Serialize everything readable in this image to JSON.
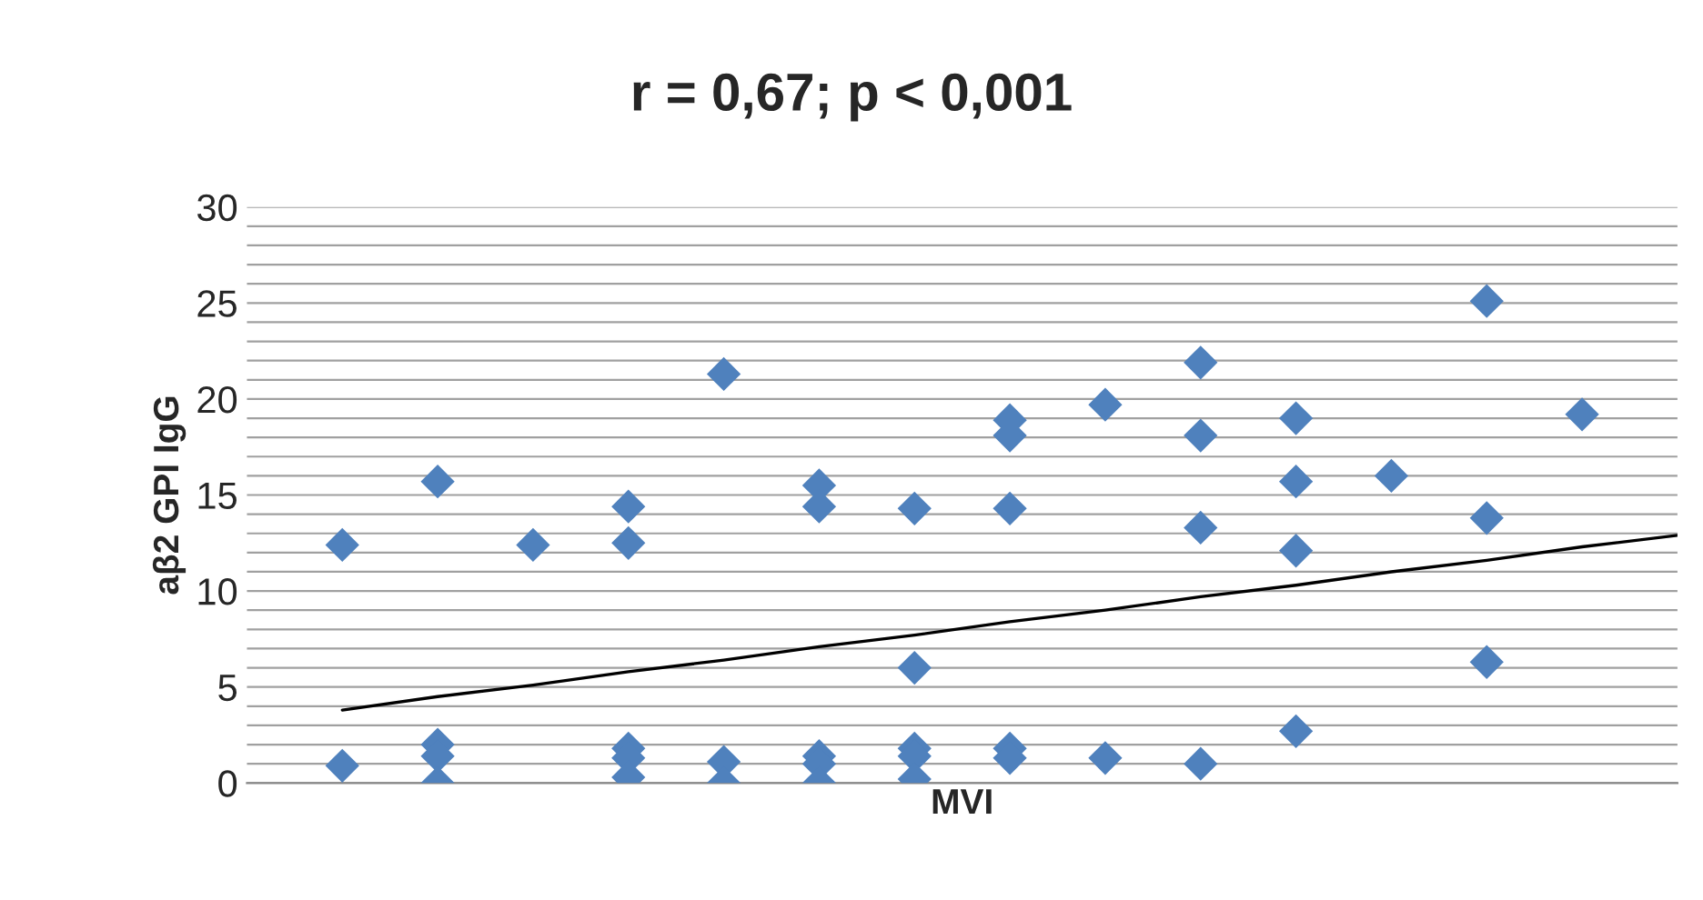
{
  "chart_data": {
    "type": "scatter",
    "title": "r = 0,67; p < 0,001",
    "xlabel": "MVI",
    "ylabel": "aβ2 GPI IgG",
    "categories": [
      null,
      null,
      null,
      null,
      null,
      null,
      null,
      null,
      null,
      null,
      null,
      null,
      null,
      null,
      null
    ],
    "ylim": [
      0,
      30
    ],
    "yticks": [
      0,
      {
        "value": 1,
        "label": null
      },
      {
        "value": 2,
        "label": null
      },
      {
        "value": 3,
        "label": null
      },
      {
        "value": 4,
        "label": null
      },
      5,
      {
        "value": 6,
        "label": null
      },
      {
        "value": 7,
        "label": null
      },
      {
        "value": 8,
        "label": null
      },
      {
        "value": 9,
        "label": null
      },
      10,
      {
        "value": 11,
        "label": null
      },
      {
        "value": 12,
        "label": null
      },
      {
        "value": 13,
        "label": null
      },
      {
        "value": 14,
        "label": null
      },
      15,
      {
        "value": 16,
        "label": null
      },
      {
        "value": 17,
        "label": null
      },
      {
        "value": 18,
        "label": null
      },
      {
        "value": 19,
        "label": null
      },
      20,
      {
        "value": 21,
        "label": null
      },
      {
        "value": 22,
        "label": null
      },
      {
        "value": 23,
        "label": null
      },
      {
        "value": 24,
        "label": null
      },
      25,
      {
        "value": 26,
        "label": null
      },
      {
        "value": 27,
        "label": null
      },
      {
        "value": 28,
        "label": null
      },
      {
        "value": 29,
        "label": null
      },
      30
    ],
    "tick_labels": "y",
    "grid": "y",
    "marker": "diamond",
    "series": [
      {
        "color": "#4f81bd",
        "values": [
          12.4,
          15.7,
          12.4,
          14.4,
          21.3,
          15.5,
          14.3,
          18.9,
          19.7,
          21.9,
          19.0,
          16.0,
          25.1,
          19.2,
          null
        ]
      },
      {
        "color": "#4f81bd",
        "values": [
          0.9,
          2.0,
          null,
          12.5,
          1.1,
          14.4,
          6.0,
          18.1,
          1.3,
          18.1,
          15.7,
          null,
          13.8,
          null,
          null
        ]
      },
      {
        "color": "#4f81bd",
        "values": [
          null,
          1.4,
          null,
          1.8,
          0.0,
          1.4,
          1.8,
          14.3,
          null,
          13.3,
          12.1,
          null,
          6.3,
          null,
          null
        ]
      },
      {
        "color": "#4f81bd",
        "values": [
          null,
          0.0,
          null,
          1.3,
          null,
          1.0,
          1.4,
          1.8,
          null,
          1.0,
          2.7,
          null,
          null,
          null,
          null
        ]
      },
      {
        "color": "#4f81bd",
        "values": [
          null,
          null,
          null,
          0.3,
          null,
          0.0,
          0.2,
          1.3,
          null,
          null,
          null,
          null,
          null,
          null,
          null
        ]
      },
      {
        "type": "line",
        "marker": "none",
        "line_style": "solid",
        "color": "#000000",
        "values": [
          3.8,
          4.5,
          5.1,
          5.8,
          6.4,
          7.1,
          7.7,
          8.4,
          9.0,
          9.7,
          10.3,
          11.0,
          11.6,
          12.3,
          12.9
        ]
      }
    ]
  }
}
